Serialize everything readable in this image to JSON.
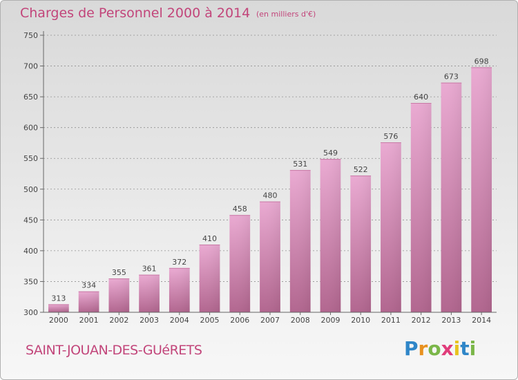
{
  "header": {
    "title": "Charges de Personnel 2000 à 2014",
    "subtitle": "(en milliers d'€)"
  },
  "footer": {
    "commune": "SAINT-JOUAN-DES-GUéRETS",
    "logo_text": "Proxiti"
  },
  "colors": {
    "title": "#c2457a",
    "bar_top": "#e8a8cf",
    "bar_bottom": "#b0648f",
    "grid": "#8f8f8f"
  },
  "chart_data": {
    "type": "bar",
    "categories": [
      "2000",
      "2001",
      "2002",
      "2003",
      "2004",
      "2005",
      "2006",
      "2007",
      "2008",
      "2009",
      "2010",
      "2011",
      "2012",
      "2013",
      "2014"
    ],
    "values": [
      313,
      334,
      355,
      361,
      372,
      410,
      458,
      480,
      531,
      549,
      522,
      576,
      640,
      673,
      698
    ],
    "ylim": [
      300,
      750
    ],
    "yticks": [
      300,
      350,
      400,
      450,
      500,
      550,
      600,
      650,
      700,
      750
    ],
    "grid": true,
    "data_labels": true
  }
}
